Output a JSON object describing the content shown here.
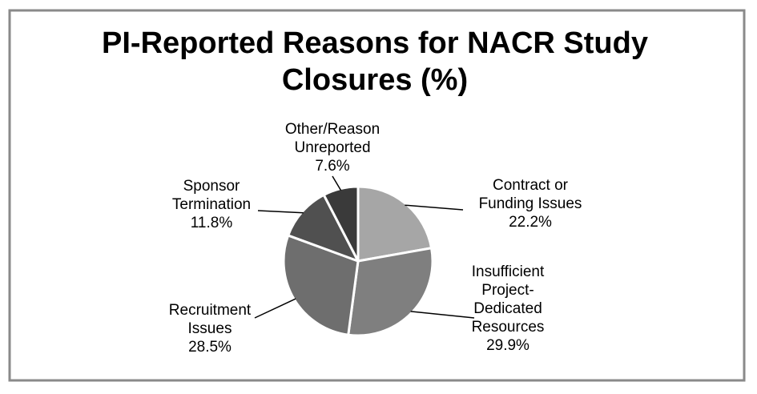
{
  "chart_data": {
    "type": "pie",
    "title_lines": [
      "PI-Reported Reasons for NACR Study",
      "Closures (%)"
    ],
    "slices": [
      {
        "label_lines": [
          "Contract or",
          "Funding Issues"
        ],
        "value": 22.2,
        "value_text": "22.2%",
        "color": "#a6a6a6"
      },
      {
        "label_lines": [
          "Insufficient",
          "Project-",
          "Dedicated",
          "Resources"
        ],
        "value": 29.9,
        "value_text": "29.9%",
        "color": "#7f7f7f"
      },
      {
        "label_lines": [
          "Recruitment",
          "Issues"
        ],
        "value": 28.5,
        "value_text": "28.5%",
        "color": "#6e6e6e"
      },
      {
        "label_lines": [
          "Sponsor",
          "Termination"
        ],
        "value": 11.8,
        "value_text": "11.8%",
        "color": "#505050"
      },
      {
        "label_lines": [
          "Other/Reason",
          "Unreported"
        ],
        "value": 7.6,
        "value_text": "7.6%",
        "color": "#3a3a3a"
      }
    ],
    "start_angle": "12 o'clock",
    "direction": "clockwise",
    "legend": "none"
  }
}
